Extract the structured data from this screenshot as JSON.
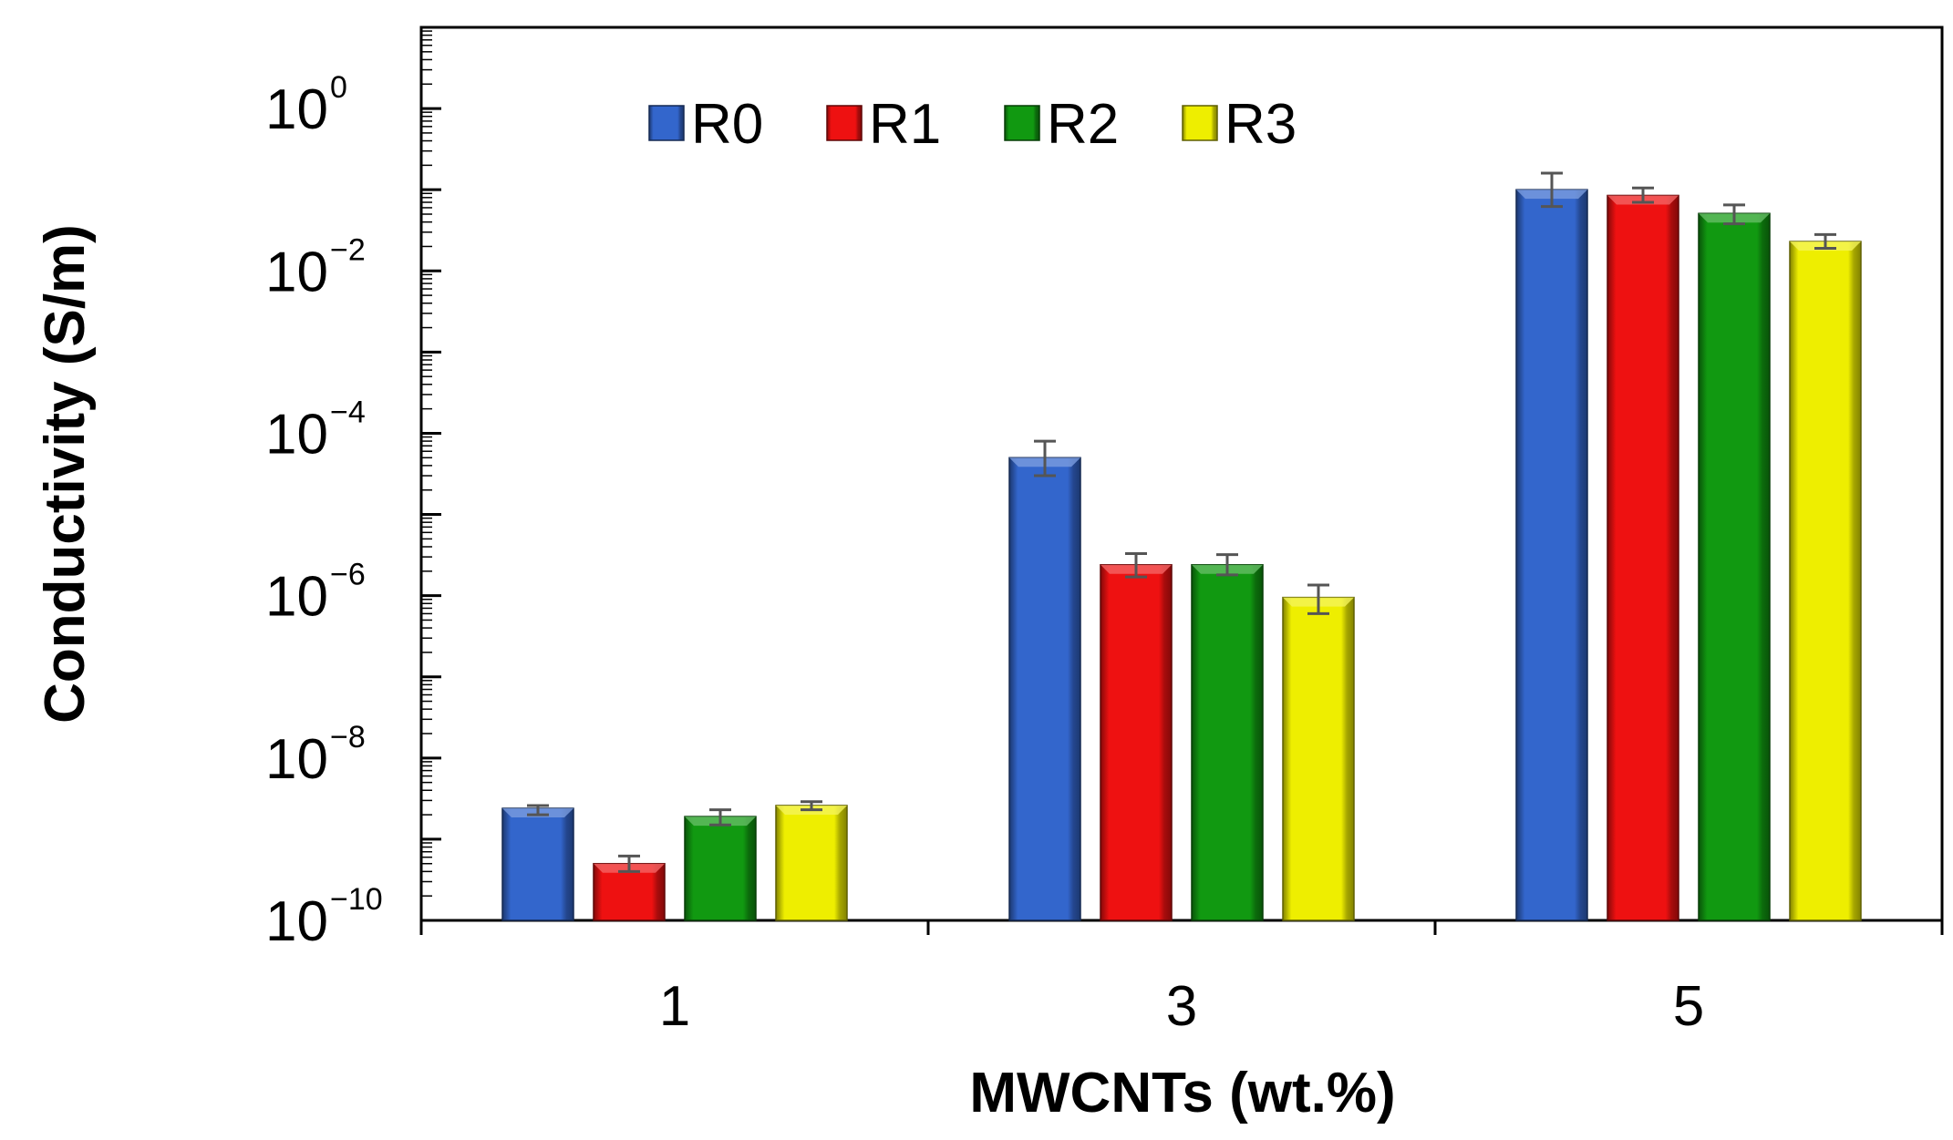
{
  "chart_data": {
    "type": "bar",
    "title": "",
    "xlabel": "MWCNTs (wt.%)",
    "ylabel": "Conductivity (S/m)",
    "yscale": "log",
    "ylim": [
      1e-10,
      10
    ],
    "ytick_base": "10",
    "ytick_exponents": [
      "0",
      "−2",
      "−4",
      "−6",
      "−8",
      "−10"
    ],
    "ytick_values": [
      1,
      0.01,
      0.0001,
      1e-06,
      1e-08,
      1e-10
    ],
    "categories": [
      "1",
      "3",
      "5"
    ],
    "legend_position": "top-left",
    "series": [
      {
        "name": "R0",
        "color": "#3366cc",
        "values": [
          2.4e-09,
          5e-05,
          0.1
        ],
        "err_low": [
          2e-09,
          3e-05,
          0.062
        ],
        "err_high": [
          2.6e-09,
          8e-05,
          0.16
        ]
      },
      {
        "name": "R1",
        "color": "#ee1111",
        "values": [
          5e-10,
          2.4e-06,
          0.085
        ],
        "err_low": [
          4e-10,
          1.7e-06,
          0.07
        ],
        "err_high": [
          6.2e-10,
          3.3e-06,
          0.105
        ]
      },
      {
        "name": "R2",
        "color": "#119911",
        "values": [
          1.9e-09,
          2.4e-06,
          0.051
        ],
        "err_low": [
          1.5e-09,
          1.8e-06,
          0.038
        ],
        "err_high": [
          2.3e-09,
          3.2e-06,
          0.065
        ]
      },
      {
        "name": "R3",
        "color": "#eeee00",
        "values": [
          2.6e-09,
          9.5e-07,
          0.023
        ],
        "err_low": [
          2.3e-09,
          6e-07,
          0.019
        ],
        "err_high": [
          2.9e-09,
          1.35e-06,
          0.028
        ]
      }
    ]
  }
}
